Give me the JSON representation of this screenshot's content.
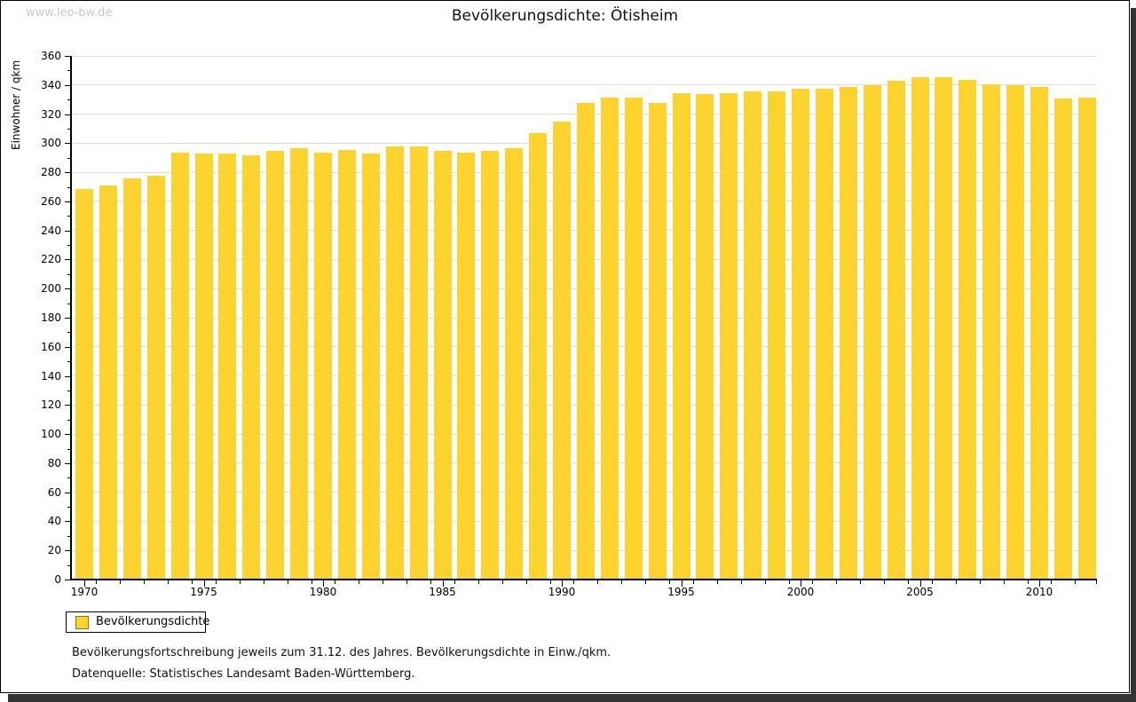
{
  "watermark": "www.leo-bw.de",
  "title": "Bevölkerungsdichte: Ötisheim",
  "legend": {
    "label": "Bevölkerungsdichte"
  },
  "footnotes": {
    "line1": "Bevölkerungsfortschreibung jeweils zum 31.12. des Jahres. Bevölkerungsdichte in Einw./qkm.",
    "line2": "Datenquelle: Statistisches Landesamt Baden-Württemberg."
  },
  "chart_data": {
    "type": "bar",
    "title": "Bevölkerungsdichte: Ötisheim",
    "xlabel": "",
    "ylabel": "Einwohner / qkm",
    "ylim": [
      0,
      360
    ],
    "y_tick_step": 20,
    "y_minor_tick_step": 10,
    "x_tick_labels": [
      1970,
      1975,
      1980,
      1985,
      1990,
      1995,
      2000,
      2005,
      2010
    ],
    "grid": true,
    "legend_position": "bottom-left",
    "bar_color": "#FCD32F",
    "categories": [
      1970,
      1971,
      1972,
      1973,
      1974,
      1975,
      1976,
      1977,
      1978,
      1979,
      1980,
      1981,
      1982,
      1983,
      1984,
      1985,
      1986,
      1987,
      1988,
      1989,
      1990,
      1991,
      1992,
      1993,
      1994,
      1995,
      1996,
      1997,
      1998,
      1999,
      2000,
      2001,
      2002,
      2003,
      2004,
      2005,
      2006,
      2007,
      2008,
      2009,
      2010,
      2011,
      2012
    ],
    "values": [
      268,
      270,
      275,
      277,
      293,
      292,
      292,
      291,
      294,
      296,
      293,
      295,
      292,
      297,
      297,
      294,
      293,
      294,
      296,
      306,
      314,
      327,
      331,
      331,
      327,
      334,
      333,
      334,
      335,
      335,
      337,
      337,
      338,
      339,
      342,
      345,
      345,
      343,
      340,
      339,
      338,
      330,
      331
    ],
    "series_name": "Bevölkerungsdichte"
  }
}
